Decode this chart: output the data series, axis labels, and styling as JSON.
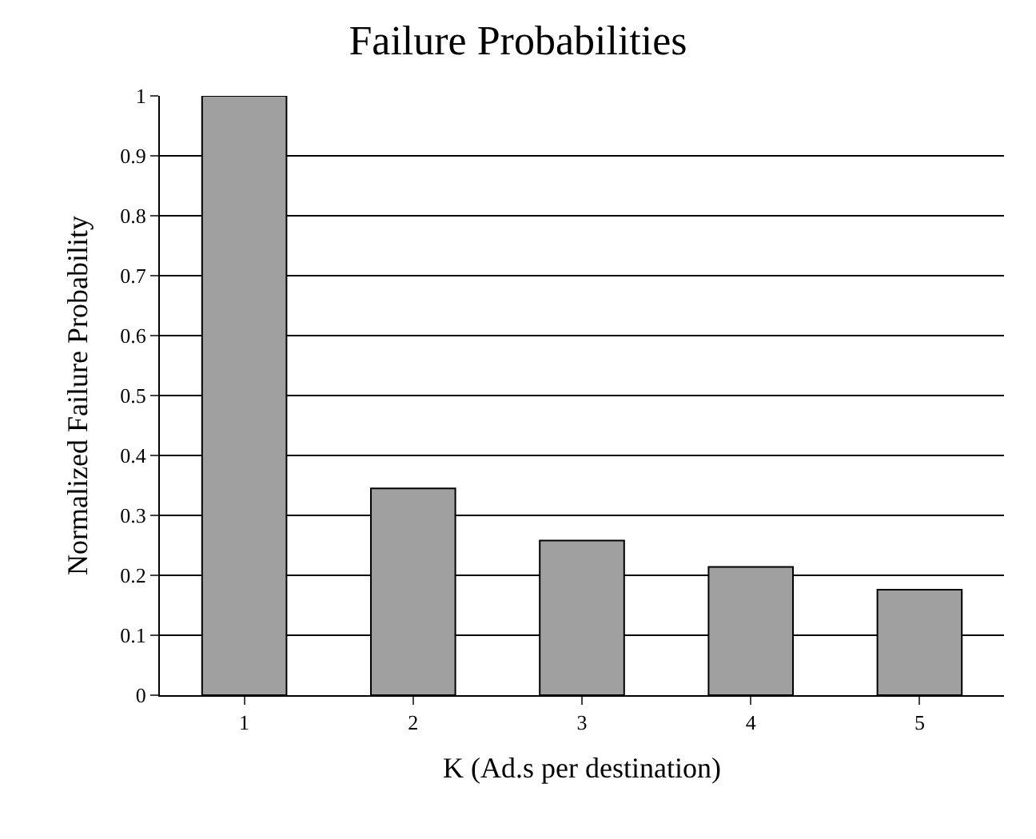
{
  "chart_data": {
    "type": "bar",
    "title": "Failure Probabilities",
    "xlabel": "K (Ad.s per destination)",
    "ylabel": "Normalized Failure Probability",
    "categories": [
      "1",
      "2",
      "3",
      "4",
      "5"
    ],
    "values": [
      1.0,
      0.345,
      0.258,
      0.214,
      0.176
    ],
    "color": "#a0a0a0",
    "ylim": [
      0,
      1
    ],
    "yticks": [
      0,
      0.1,
      0.2,
      0.3,
      0.4,
      0.5,
      0.6,
      0.7,
      0.8,
      0.9,
      1
    ],
    "grid": "y",
    "legend": false
  }
}
